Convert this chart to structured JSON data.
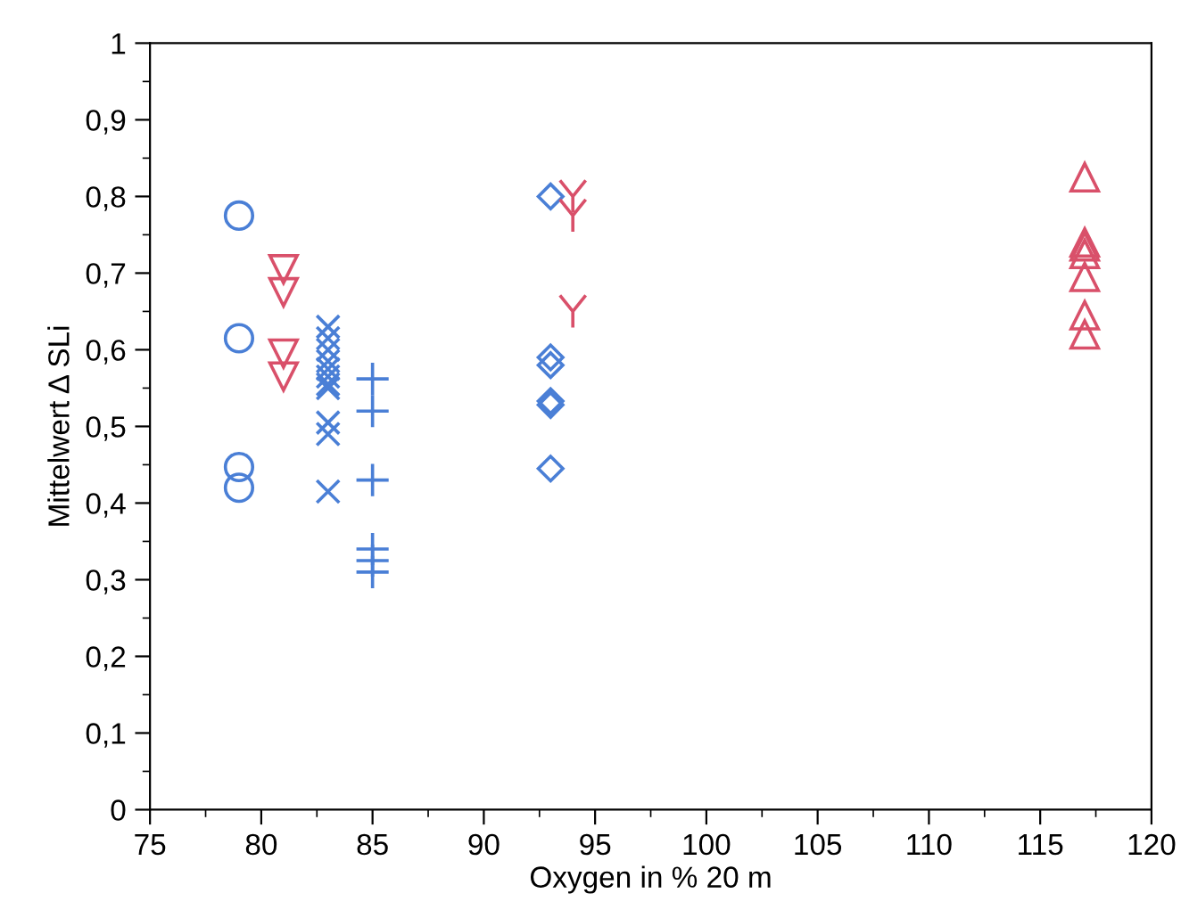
{
  "chart_data": {
    "type": "scatter",
    "xlabel": "Oxygen in % 20 m",
    "ylabel": "Mittelwert Δ SLi",
    "xlim": [
      75,
      120
    ],
    "xticks": [
      75,
      80,
      85,
      90,
      95,
      100,
      105,
      110,
      115,
      120
    ],
    "ylim": [
      0,
      1
    ],
    "yticks": [
      {
        "value": 0,
        "label": "0"
      },
      {
        "value": 0.1,
        "label": "0,1"
      },
      {
        "value": 0.2,
        "label": "0,2"
      },
      {
        "value": 0.3,
        "label": "0,3"
      },
      {
        "value": 0.4,
        "label": "0,4"
      },
      {
        "value": 0.5,
        "label": "0,5"
      },
      {
        "value": 0.6,
        "label": "0,6"
      },
      {
        "value": 0.7,
        "label": "0,7"
      },
      {
        "value": 0.8,
        "label": "0,8"
      },
      {
        "value": 0.9,
        "label": "0,9"
      },
      {
        "value": 1,
        "label": "1"
      }
    ],
    "grid": false,
    "series": [
      {
        "color": "#4a7fd6",
        "marker": "circle",
        "x": [
          79,
          79,
          79,
          79
        ],
        "values": [
          0.775,
          0.615,
          0.447,
          0.42
        ]
      },
      {
        "color": "#d9506a",
        "marker": "triangle_down",
        "x": [
          81,
          81,
          81,
          81
        ],
        "values": [
          0.705,
          0.675,
          0.595,
          0.565
        ]
      },
      {
        "color": "#4a7fd6",
        "marker": "cross",
        "x": [
          83,
          83,
          83,
          83,
          83,
          83,
          83,
          83,
          83,
          83,
          83
        ],
        "values": [
          0.63,
          0.615,
          0.6,
          0.585,
          0.575,
          0.565,
          0.555,
          0.55,
          0.505,
          0.49,
          0.415
        ]
      },
      {
        "color": "#4a7fd6",
        "marker": "plus",
        "x": [
          85,
          85,
          85,
          85,
          85,
          85
        ],
        "values": [
          0.562,
          0.52,
          0.43,
          0.34,
          0.325,
          0.31
        ]
      },
      {
        "color": "#4a7fd6",
        "marker": "diamond",
        "x": [
          93,
          93,
          93,
          93,
          93,
          93
        ],
        "values": [
          0.8,
          0.59,
          0.58,
          0.533,
          0.528,
          0.445
        ]
      },
      {
        "color": "#d9506a",
        "x": [
          94,
          94,
          94
        ],
        "values": [
          0.8,
          0.775,
          0.65
        ]
      },
      {
        "color": "#d9506a",
        "marker": "triangle",
        "x": [
          117,
          117,
          117,
          117,
          117,
          117,
          117
        ],
        "values": [
          0.825,
          0.74,
          0.735,
          0.725,
          0.695,
          0.645,
          0.62
        ]
      }
    ]
  }
}
